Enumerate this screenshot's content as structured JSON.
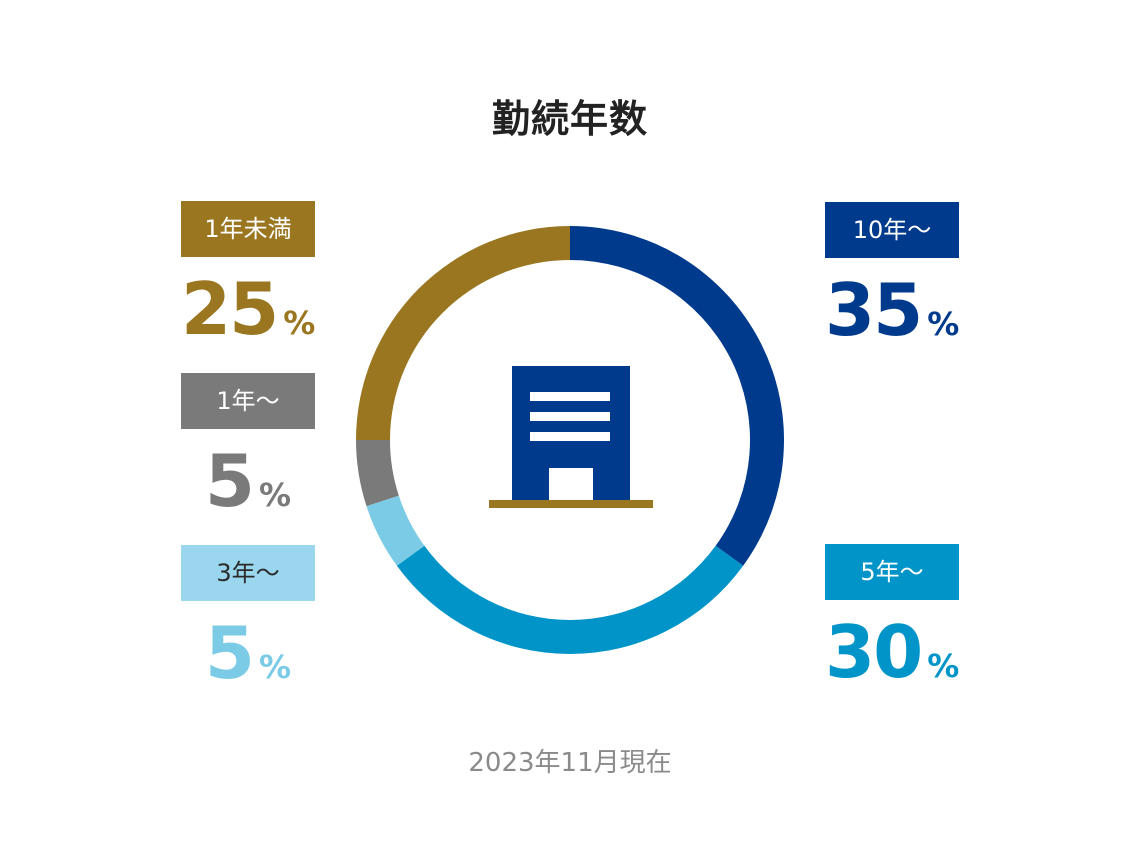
{
  "title": "勤続年数",
  "footnote": "2023年11月現在",
  "percent_unit": "%",
  "chart_data": {
    "type": "pie",
    "style": "donut",
    "title": "勤続年数",
    "slices": [
      {
        "label": "10年〜",
        "value": 35,
        "color": "#003a8c"
      },
      {
        "label": "5年〜",
        "value": 30,
        "color": "#0094c8"
      },
      {
        "label": "3年〜",
        "value": 5,
        "color": "#7ccbe6"
      },
      {
        "label": "1年〜",
        "value": 5,
        "color": "#7a7a7a"
      },
      {
        "label": "1年未満",
        "value": 25,
        "color": "#9a7620"
      }
    ]
  },
  "legend": {
    "lt1": {
      "label": "1年未満",
      "value": "25",
      "color": "#9a7620"
    },
    "y1": {
      "label": "1年〜",
      "value": "5",
      "color": "#7a7a7a"
    },
    "y3": {
      "label": "3年〜",
      "value": "5",
      "color": "#7ccbe6",
      "tag_color": "#9ad6ee"
    },
    "y10": {
      "label": "10年〜",
      "value": "35",
      "color": "#003a8c"
    },
    "y5": {
      "label": "5年〜",
      "value": "30",
      "color": "#0094c8"
    }
  },
  "icons": {
    "center": "office-building-icon"
  }
}
